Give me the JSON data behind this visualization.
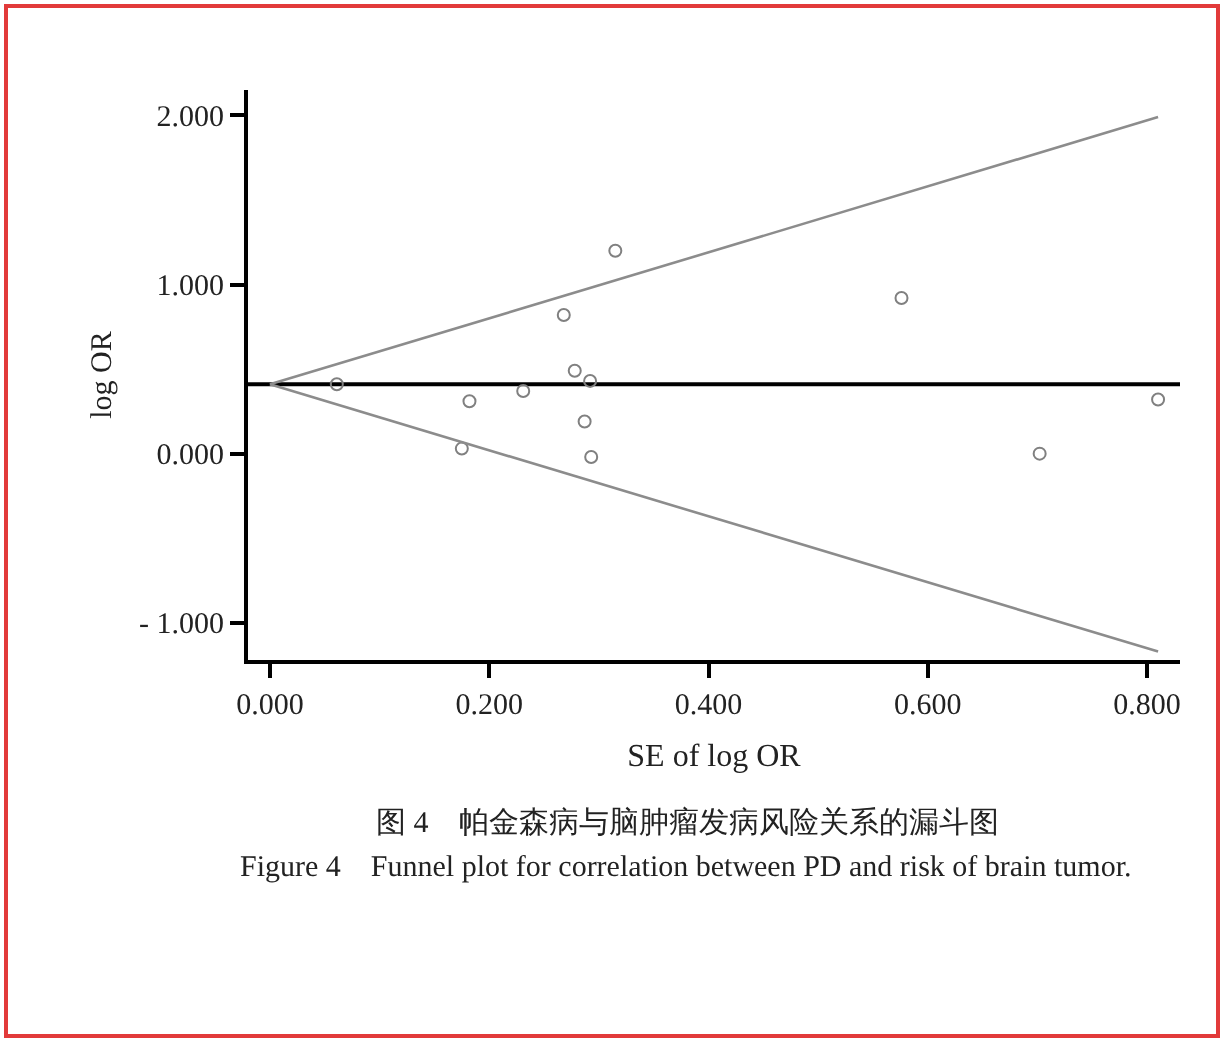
{
  "chart_data": {
    "type": "scatter",
    "xlabel": "SE of log OR",
    "ylabel": "log OR",
    "annotations": [
      "图 4　帕金森病与脑肿瘤发病风险关系的漏斗图",
      "Figure 4　Funnel plot for correlation between PD and risk of brain tumor."
    ],
    "xlim": [
      -0.02,
      0.83
    ],
    "ylim": [
      -1.22,
      2.15
    ],
    "xticks": [
      {
        "value": 0,
        "label": "0.000"
      },
      {
        "value": 0.2,
        "label": "0.200"
      },
      {
        "value": 0.4,
        "label": "0.400"
      },
      {
        "value": 0.6,
        "label": "0.600"
      },
      {
        "value": 0.8,
        "label": "0.800"
      }
    ],
    "yticks": [
      {
        "value": -1,
        "label": "- 1.000"
      },
      {
        "value": 0,
        "label": "0.000"
      },
      {
        "value": 1,
        "label": "1.000"
      },
      {
        "value": 2,
        "label": "2.000"
      }
    ],
    "grid": false,
    "ref_lines": [
      {
        "axis": "y",
        "value": 0.41,
        "color": "#000000"
      }
    ],
    "series": [
      {
        "marker": "circle",
        "color": "#808080",
        "x": [
          0.061,
          0.182,
          0.175,
          0.231,
          0.268,
          0.278,
          0.292,
          0.287,
          0.293,
          0.315,
          0.576,
          0.702,
          0.81
        ],
        "values": [
          0.41,
          0.31,
          0.03,
          0.37,
          0.82,
          0.49,
          0.43,
          0.19,
          -0.02,
          1.2,
          0.92,
          0.0,
          0.32
        ]
      },
      {
        "type": "line",
        "marker": "none",
        "color": "#8c8c8c",
        "x": [
          0,
          0.81
        ],
        "values": [
          0.41,
          1.99
        ]
      },
      {
        "type": "line",
        "marker": "none",
        "color": "#8c8c8c",
        "x": [
          0,
          0.81
        ],
        "values": [
          0.41,
          -1.17
        ]
      }
    ]
  }
}
